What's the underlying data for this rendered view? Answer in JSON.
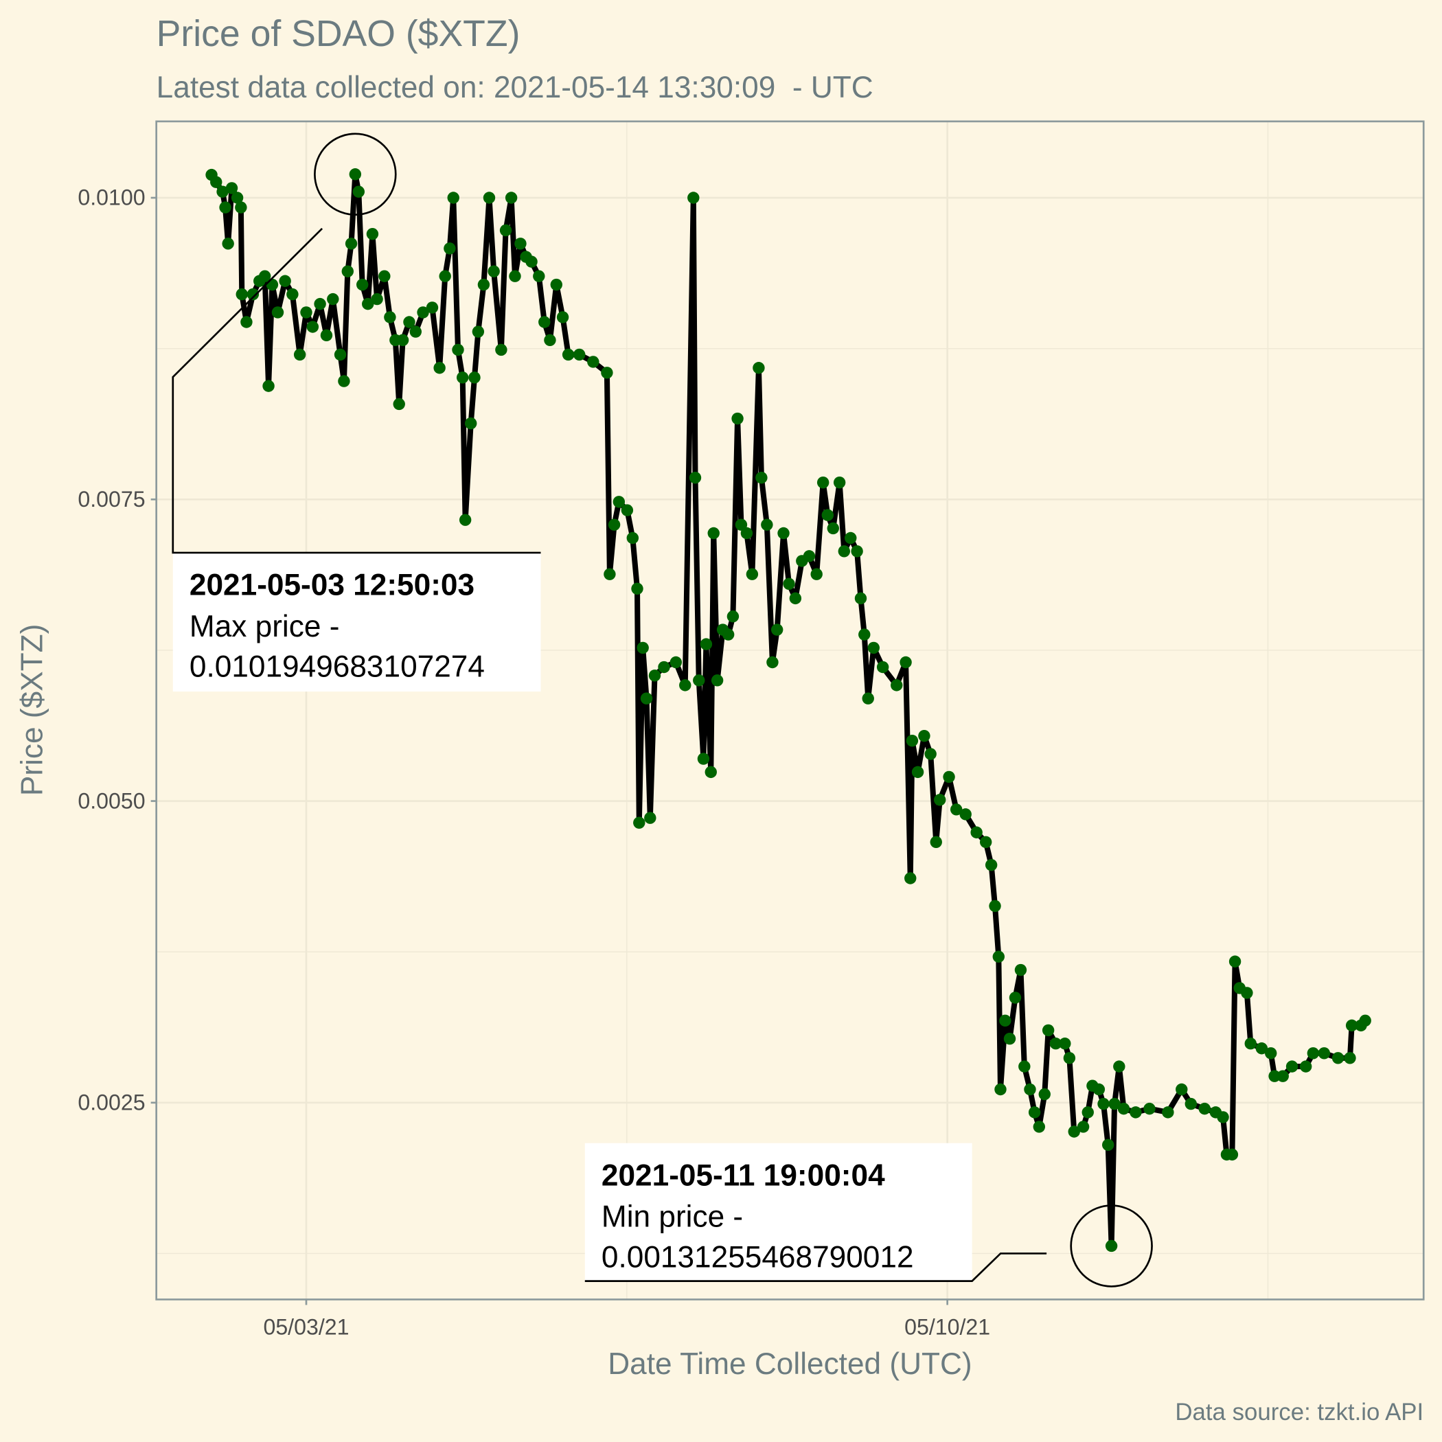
{
  "chart_data": {
    "type": "line",
    "title": "Price of SDAO ($XTZ)",
    "subtitle": "Latest data collected on: 2021-05-14 13:30:09  - UTC",
    "x_label": "Date Time Collected (UTC)",
    "y_label": "Price ($XTZ)",
    "caption": "Data source: tzkt.io API",
    "xlim": [
      "2021-05-01T08:43",
      "2021-05-15T04:48"
    ],
    "xticks": [
      {
        "value": "2021-05-03T00:00",
        "label": "05/03/21"
      },
      {
        "value": "2021-05-10T00:00",
        "label": "05/10/21"
      }
    ],
    "ylim": [
      0.000869,
      0.010633
    ],
    "yticks": [
      {
        "value": 0.0025,
        "label": "0.0025"
      },
      {
        "value": 0.005,
        "label": "0.0050"
      },
      {
        "value": 0.0075,
        "label": "0.0075"
      },
      {
        "value": 0.01,
        "label": "0.0100"
      }
    ],
    "grid": true,
    "series": [
      {
        "line_color": "#000000",
        "color": "#006400",
        "x": [
          "2021-05-01T23:11",
          "2021-05-02T00:23",
          "2021-05-02T02:04",
          "2021-05-02T02:47",
          "2021-05-02T03:31",
          "2021-05-02T04:29",
          "2021-05-02T05:56",
          "2021-05-02T06:53",
          "2021-05-02T07:08",
          "2021-05-02T08:20",
          "2021-05-02T10:02",
          "2021-05-02T11:43",
          "2021-05-02T13:09",
          "2021-05-02T14:07",
          "2021-05-02T15:05",
          "2021-05-02T16:32",
          "2021-05-02T18:27",
          "2021-05-02T20:23",
          "2021-05-02T22:19",
          "2021-05-03T00:00",
          "2021-05-03T01:41",
          "2021-05-03T03:37",
          "2021-05-03T05:18",
          "2021-05-03T06:59",
          "2021-05-03T08:55",
          "2021-05-03T09:53",
          "2021-05-03T10:51",
          "2021-05-03T11:48",
          "2021-05-03T12:50:03",
          "2021-05-03T13:44",
          "2021-05-03T14:42",
          "2021-05-03T16:09",
          "2021-05-03T17:21",
          "2021-05-03T18:33",
          "2021-05-03T20:29",
          "2021-05-03T21:56",
          "2021-05-03T23:22",
          "2021-05-04T00:20",
          "2021-05-04T01:18",
          "2021-05-04T02:59",
          "2021-05-04T04:40",
          "2021-05-04T06:36",
          "2021-05-04T09:01",
          "2021-05-04T10:56",
          "2021-05-04T12:23",
          "2021-05-04T13:35",
          "2021-05-04T14:33",
          "2021-05-04T15:46",
          "2021-05-04T16:58",
          "2021-05-04T17:41",
          "2021-05-04T19:08",
          "2021-05-04T20:05",
          "2021-05-04T21:03",
          "2021-05-04T22:30",
          "2021-05-04T23:57",
          "2021-05-05T01:09",
          "2021-05-05T03:05",
          "2021-05-05T04:17",
          "2021-05-05T05:44",
          "2021-05-05T06:42",
          "2021-05-05T08:08",
          "2021-05-05T09:36",
          "2021-05-05T11:02",
          "2021-05-05T12:58",
          "2021-05-05T14:24",
          "2021-05-05T15:52",
          "2021-05-05T17:33",
          "2021-05-05T19:13",
          "2021-05-05T20:40",
          "2021-05-05T23:34",
          "2021-05-06T03:11",
          "2021-05-06T06:48",
          "2021-05-06T07:31",
          "2021-05-06T08:43",
          "2021-05-06T09:56",
          "2021-05-06T12:06",
          "2021-05-06T13:32",
          "2021-05-06T14:44",
          "2021-05-06T15:14",
          "2021-05-06T16:12",
          "2021-05-06T17:10",
          "2021-05-06T18:07",
          "2021-05-06T19:19",
          "2021-05-06T21:45",
          "2021-05-07T00:52",
          "2021-05-07T03:17",
          "2021-05-07T05:27",
          "2021-05-07T05:56",
          "2021-05-07T06:53",
          "2021-05-07T08:05",
          "2021-05-07T08:48",
          "2021-05-07T10:02",
          "2021-05-07T10:45",
          "2021-05-07T11:43",
          "2021-05-07T13:09",
          "2021-05-07T14:36",
          "2021-05-07T15:49",
          "2021-05-07T17:01",
          "2021-05-07T17:59",
          "2021-05-07T19:25",
          "2021-05-07T20:51",
          "2021-05-07T22:34",
          "2021-05-07T23:17",
          "2021-05-08T00:43",
          "2021-05-08T02:10",
          "2021-05-08T03:23",
          "2021-05-08T05:04",
          "2021-05-08T06:30",
          "2021-05-08T08:11",
          "2021-05-08T09:53",
          "2021-05-08T11:48",
          "2021-05-08T13:44",
          "2021-05-08T15:26",
          "2021-05-08T16:38",
          "2021-05-08T18:04",
          "2021-05-08T19:45",
          "2021-05-08T20:57",
          "2021-05-08T22:39",
          "2021-05-09T00:20",
          "2021-05-09T01:18",
          "2021-05-09T02:15",
          "2021-05-09T03:14",
          "2021-05-09T04:41",
          "2021-05-09T07:05",
          "2021-05-09T10:42",
          "2021-05-09T13:06",
          "2021-05-09T14:18",
          "2021-05-09T14:47",
          "2021-05-09T16:15",
          "2021-05-09T17:56",
          "2021-05-09T19:36",
          "2021-05-09T21:03",
          "2021-05-09T22:02",
          "2021-05-10T00:26",
          "2021-05-10T02:21",
          "2021-05-10T04:47",
          "2021-05-10T07:39",
          "2021-05-10T10:05",
          "2021-05-10T11:31",
          "2021-05-10T12:29",
          "2021-05-10T13:26",
          "2021-05-10T13:55",
          "2021-05-10T15:09",
          "2021-05-10T16:21",
          "2021-05-10T17:47",
          "2021-05-10T19:13",
          "2021-05-10T20:11",
          "2021-05-10T21:39",
          "2021-05-10T22:51",
          "2021-05-11T00:03",
          "2021-05-11T01:29",
          "2021-05-11T02:27",
          "2021-05-11T04:24",
          "2021-05-11T06:48",
          "2021-05-11T07:59",
          "2021-05-11T09:13",
          "2021-05-11T11:37",
          "2021-05-11T12:49",
          "2021-05-11T14:01",
          "2021-05-11T15:43",
          "2021-05-11T16:55",
          "2021-05-11T18:07",
          "2021-05-11T19:00:04",
          "2021-05-11T19:48",
          "2021-05-11T21:01",
          "2021-05-11T22:13",
          "2021-05-12T01:21",
          "2021-05-12T04:58",
          "2021-05-12T09:48",
          "2021-05-12T13:23",
          "2021-05-12T15:49",
          "2021-05-12T19:25",
          "2021-05-12T22:19",
          "2021-05-13T00:14",
          "2021-05-13T01:12",
          "2021-05-13T02:38",
          "2021-05-13T03:23",
          "2021-05-13T04:35",
          "2021-05-13T06:30",
          "2021-05-13T07:28",
          "2021-05-13T10:22",
          "2021-05-13T12:46",
          "2021-05-13T13:44",
          "2021-05-13T15:55",
          "2021-05-13T18:19",
          "2021-05-13T21:56",
          "2021-05-13T23:51",
          "2021-05-14T02:44",
          "2021-05-14T06:22",
          "2021-05-14T09:30",
          "2021-05-14T09:59",
          "2021-05-14T12:23",
          "2021-05-14T13:30:09"
        ],
        "values": [
          0.01019,
          0.01013,
          0.01005,
          0.00992,
          0.00962,
          0.01008,
          0.01,
          0.00992,
          0.0092,
          0.00897,
          0.0092,
          0.00931,
          0.00935,
          0.00844,
          0.00928,
          0.00905,
          0.00931,
          0.0092,
          0.0087,
          0.00905,
          0.00893,
          0.00912,
          0.00886,
          0.00916,
          0.0087,
          0.00848,
          0.00939,
          0.00962,
          0.0101949683107274,
          0.01005,
          0.00928,
          0.00912,
          0.0097,
          0.00916,
          0.00935,
          0.00901,
          0.00882,
          0.00829,
          0.00882,
          0.00897,
          0.00889,
          0.00905,
          0.00909,
          0.00859,
          0.00935,
          0.00958,
          0.01,
          0.00874,
          0.00851,
          0.00733,
          0.00813,
          0.00851,
          0.00889,
          0.00928,
          0.01,
          0.00939,
          0.00874,
          0.00973,
          0.01,
          0.00935,
          0.00962,
          0.00951,
          0.00947,
          0.00935,
          0.00897,
          0.00882,
          0.00928,
          0.00901,
          0.0087,
          0.0087,
          0.00864,
          0.00855,
          0.00688,
          0.00729,
          0.00748,
          0.00741,
          0.00718,
          0.00676,
          0.00482,
          0.00627,
          0.00585,
          0.00486,
          0.00604,
          0.00611,
          0.00615,
          0.00596,
          0.01,
          0.00768,
          0.006,
          0.00535,
          0.0063,
          0.00524,
          0.00722,
          0.006,
          0.00642,
          0.00638,
          0.00653,
          0.00817,
          0.00729,
          0.00722,
          0.00688,
          0.00859,
          0.00768,
          0.00729,
          0.00615,
          0.00642,
          0.00722,
          0.0068,
          0.00668,
          0.00699,
          0.00703,
          0.00688,
          0.00764,
          0.00737,
          0.00726,
          0.00764,
          0.00707,
          0.00718,
          0.00707,
          0.00668,
          0.00638,
          0.00585,
          0.00627,
          0.00611,
          0.00596,
          0.00615,
          0.00436,
          0.0055,
          0.00524,
          0.00554,
          0.00539,
          0.00466,
          0.00501,
          0.0052,
          0.00493,
          0.00489,
          0.00474,
          0.00466,
          0.00447,
          0.00413,
          0.00371,
          0.00261,
          0.00318,
          0.00303,
          0.00337,
          0.0036,
          0.0028,
          0.00261,
          0.00242,
          0.0023,
          0.00257,
          0.0031,
          0.00299,
          0.00299,
          0.00287,
          0.00226,
          0.0023,
          0.00242,
          0.00264,
          0.00261,
          0.00249,
          0.00215,
          0.00131255468790012,
          0.00249,
          0.0028,
          0.00245,
          0.00242,
          0.00245,
          0.00242,
          0.00261,
          0.00249,
          0.00245,
          0.00242,
          0.00238,
          0.00207,
          0.00207,
          0.00367,
          0.00345,
          0.00341,
          0.00299,
          0.00295,
          0.00291,
          0.00272,
          0.00272,
          0.0028,
          0.0028,
          0.00291,
          0.00291,
          0.00287,
          0.00287,
          0.00314,
          0.00314,
          0.00318
        ]
      }
    ],
    "annotations": [
      {
        "label": "2021-05-03 12:50:03",
        "text": "Max price -",
        "value": 0.0101949683107274
      },
      {
        "label": "2021-05-11 19:00:04",
        "text": "Min price -",
        "value": 0.00131255468790012
      }
    ]
  }
}
